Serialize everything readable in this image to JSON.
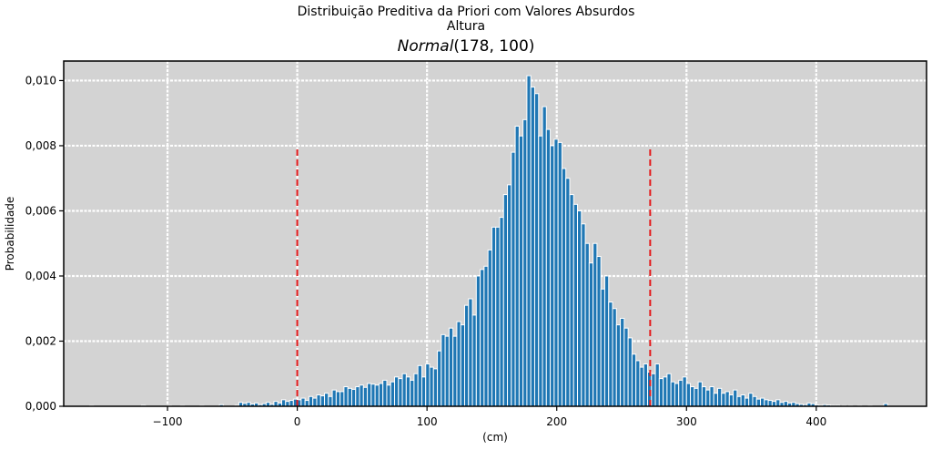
{
  "title_line1": "Distribuição Preditiva da Priori com Valores Absurdos",
  "title_line2": "Altura",
  "subtitle_italic": "Normal",
  "subtitle_params": "(178, 100)",
  "chart_data": {
    "type": "bar",
    "xlabel": "(cm)",
    "ylabel": "Probabilidade",
    "xlim": [
      -180,
      485
    ],
    "ylim": [
      0,
      0.0106
    ],
    "xticks": [
      -100,
      0,
      100,
      200,
      300,
      400
    ],
    "xtick_labels": [
      "−100",
      "0",
      "100",
      "200",
      "300",
      "400"
    ],
    "yticks": [
      0,
      0.002,
      0.004,
      0.006,
      0.008,
      0.01
    ],
    "ytick_labels": [
      "0,000",
      "0,002",
      "0,004",
      "0,006",
      "0,008",
      "0,010"
    ],
    "grid": true,
    "bar_color": "#1f77b4",
    "plot_background": "#d3d3d3",
    "reference_lines": [
      {
        "x": 0,
        "ymax": 0.008,
        "color": "#e41a1c",
        "style": "dashed"
      },
      {
        "x": 272,
        "ymax": 0.008,
        "color": "#e41a1c",
        "style": "dashed"
      }
    ],
    "bin_width": 3,
    "bins": [
      [
        -160,
        2e-05
      ],
      [
        -120,
        3e-05
      ],
      [
        -100,
        2e-05
      ],
      [
        -90,
        2e-05
      ],
      [
        -75,
        2e-05
      ],
      [
        -60,
        5e-05
      ],
      [
        -48,
        3e-05
      ],
      [
        -45,
        0.00012
      ],
      [
        -42,
        9e-05
      ],
      [
        -39,
        0.00012
      ],
      [
        -36,
        7e-05
      ],
      [
        -33,
        0.0001
      ],
      [
        -30,
        5e-05
      ],
      [
        -27,
        8e-05
      ],
      [
        -24,
        0.00012
      ],
      [
        -21,
        6e-05
      ],
      [
        -18,
        0.00015
      ],
      [
        -15,
        0.0001
      ],
      [
        -12,
        0.0002
      ],
      [
        -9,
        0.00015
      ],
      [
        -6,
        0.00018
      ],
      [
        -3,
        0.00022
      ],
      [
        0,
        0.0002
      ],
      [
        3,
        0.00025
      ],
      [
        6,
        0.00018
      ],
      [
        9,
        0.0003
      ],
      [
        12,
        0.00025
      ],
      [
        15,
        0.00035
      ],
      [
        18,
        0.00032
      ],
      [
        21,
        0.0004
      ],
      [
        24,
        0.0003
      ],
      [
        27,
        0.0005
      ],
      [
        30,
        0.00045
      ],
      [
        33,
        0.00045
      ],
      [
        36,
        0.0006
      ],
      [
        39,
        0.00055
      ],
      [
        42,
        0.00052
      ],
      [
        45,
        0.0006
      ],
      [
        48,
        0.00065
      ],
      [
        51,
        0.00058
      ],
      [
        54,
        0.0007
      ],
      [
        57,
        0.00068
      ],
      [
        60,
        0.00065
      ],
      [
        63,
        0.0007
      ],
      [
        66,
        0.0008
      ],
      [
        69,
        0.00065
      ],
      [
        72,
        0.00075
      ],
      [
        75,
        0.0009
      ],
      [
        78,
        0.00085
      ],
      [
        81,
        0.001
      ],
      [
        84,
        0.0009
      ],
      [
        87,
        0.0008
      ],
      [
        90,
        0.001
      ],
      [
        93,
        0.00125
      ],
      [
        96,
        0.0009
      ],
      [
        99,
        0.0013
      ],
      [
        102,
        0.0012
      ],
      [
        105,
        0.00115
      ],
      [
        108,
        0.0017
      ],
      [
        111,
        0.0022
      ],
      [
        114,
        0.00215
      ],
      [
        117,
        0.0024
      ],
      [
        120,
        0.00215
      ],
      [
        123,
        0.0026
      ],
      [
        126,
        0.0025
      ],
      [
        129,
        0.0031
      ],
      [
        132,
        0.0033
      ],
      [
        135,
        0.0028
      ],
      [
        138,
        0.004
      ],
      [
        141,
        0.0042
      ],
      [
        144,
        0.0043
      ],
      [
        147,
        0.0048
      ],
      [
        150,
        0.0055
      ],
      [
        153,
        0.0055
      ],
      [
        156,
        0.0058
      ],
      [
        159,
        0.0065
      ],
      [
        162,
        0.0068
      ],
      [
        165,
        0.0078
      ],
      [
        168,
        0.0086
      ],
      [
        171,
        0.0083
      ],
      [
        174,
        0.0088
      ],
      [
        177,
        0.01015
      ],
      [
        180,
        0.0098
      ],
      [
        183,
        0.0096
      ],
      [
        186,
        0.0083
      ],
      [
        189,
        0.0092
      ],
      [
        192,
        0.0085
      ],
      [
        195,
        0.008
      ],
      [
        198,
        0.0082
      ],
      [
        201,
        0.0081
      ],
      [
        204,
        0.0073
      ],
      [
        207,
        0.007
      ],
      [
        210,
        0.0065
      ],
      [
        213,
        0.0062
      ],
      [
        216,
        0.006
      ],
      [
        219,
        0.0056
      ],
      [
        222,
        0.005
      ],
      [
        225,
        0.0044
      ],
      [
        228,
        0.005
      ],
      [
        231,
        0.0046
      ],
      [
        234,
        0.0036
      ],
      [
        237,
        0.004
      ],
      [
        240,
        0.0032
      ],
      [
        243,
        0.003
      ],
      [
        246,
        0.0025
      ],
      [
        249,
        0.0027
      ],
      [
        252,
        0.0024
      ],
      [
        255,
        0.0021
      ],
      [
        258,
        0.0016
      ],
      [
        261,
        0.0014
      ],
      [
        264,
        0.0012
      ],
      [
        267,
        0.0013
      ],
      [
        270,
        0.00105
      ],
      [
        273,
        0.001
      ],
      [
        276,
        0.0013
      ],
      [
        279,
        0.00085
      ],
      [
        282,
        0.0009
      ],
      [
        285,
        0.001
      ],
      [
        288,
        0.00075
      ],
      [
        291,
        0.0007
      ],
      [
        294,
        0.0008
      ],
      [
        297,
        0.0009
      ],
      [
        300,
        0.0007
      ],
      [
        303,
        0.0006
      ],
      [
        306,
        0.00055
      ],
      [
        309,
        0.00075
      ],
      [
        312,
        0.0006
      ],
      [
        315,
        0.0005
      ],
      [
        318,
        0.0006
      ],
      [
        321,
        0.0004
      ],
      [
        324,
        0.00055
      ],
      [
        327,
        0.0004
      ],
      [
        330,
        0.00045
      ],
      [
        333,
        0.00035
      ],
      [
        336,
        0.0005
      ],
      [
        339,
        0.0003
      ],
      [
        342,
        0.00035
      ],
      [
        345,
        0.00025
      ],
      [
        348,
        0.0004
      ],
      [
        351,
        0.0003
      ],
      [
        354,
        0.00022
      ],
      [
        357,
        0.00025
      ],
      [
        360,
        0.0002
      ],
      [
        363,
        0.00018
      ],
      [
        366,
        0.00015
      ],
      [
        369,
        0.0002
      ],
      [
        372,
        0.00012
      ],
      [
        375,
        0.00015
      ],
      [
        378,
        0.0001
      ],
      [
        381,
        0.00012
      ],
      [
        384,
        8e-05
      ],
      [
        387,
        6e-05
      ],
      [
        390,
        5e-05
      ],
      [
        393,
        0.0001
      ],
      [
        396,
        8e-05
      ],
      [
        399,
        4e-05
      ],
      [
        402,
        3e-05
      ],
      [
        405,
        5e-05
      ],
      [
        408,
        4e-05
      ],
      [
        411,
        3e-05
      ],
      [
        415,
        3e-05
      ],
      [
        420,
        2e-05
      ],
      [
        425,
        2e-05
      ],
      [
        432,
        2e-05
      ],
      [
        440,
        2e-05
      ],
      [
        452,
        8e-05
      ]
    ]
  }
}
